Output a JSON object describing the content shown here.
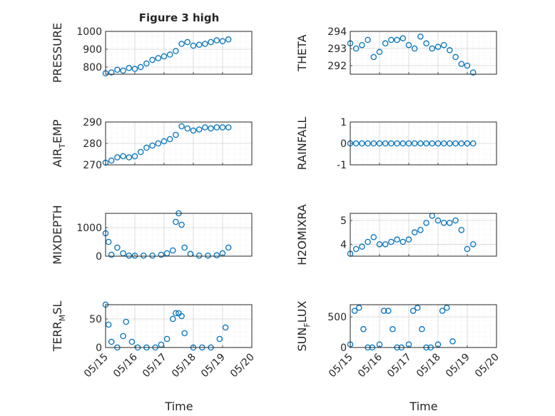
{
  "figure": {
    "title": "Figure 3 high"
  },
  "chart_data": [
    {
      "type": "scatter",
      "ylabel": "PRESSURE",
      "ylim": [
        760,
        1000
      ],
      "yticks": [
        "800",
        "900",
        "1000"
      ],
      "color": "#0072bd",
      "grid": true,
      "x": [
        15.0,
        15.2,
        15.4,
        15.6,
        15.8,
        16.0,
        16.2,
        16.4,
        16.6,
        16.8,
        17.0,
        17.2,
        17.4,
        17.6,
        17.8,
        18.0,
        18.2,
        18.4,
        18.6,
        18.8,
        19.0,
        19.2
      ],
      "y": [
        765,
        770,
        785,
        780,
        795,
        790,
        800,
        820,
        840,
        850,
        860,
        870,
        890,
        930,
        940,
        920,
        925,
        930,
        940,
        950,
        945,
        955
      ]
    },
    {
      "type": "scatter",
      "ylabel": "THETA",
      "ylim": [
        291.5,
        294
      ],
      "yticks": [
        "292",
        "293",
        "294"
      ],
      "color": "#0072bd",
      "grid": true,
      "x": [
        15.0,
        15.2,
        15.4,
        15.6,
        15.8,
        16.0,
        16.2,
        16.4,
        16.6,
        16.8,
        17.0,
        17.2,
        17.4,
        17.6,
        17.8,
        18.0,
        18.2,
        18.4,
        18.6,
        18.8,
        19.0,
        19.2
      ],
      "y": [
        293.3,
        293.0,
        293.2,
        293.5,
        292.5,
        292.8,
        293.3,
        293.5,
        293.5,
        293.6,
        293.2,
        293.0,
        293.7,
        293.3,
        293.0,
        293.1,
        293.2,
        292.9,
        292.5,
        292.1,
        292.0,
        291.6
      ]
    },
    {
      "type": "scatter",
      "ylabel": "AIR",
      "ylabel_sub": "T",
      "ylabel_rest": "EMP",
      "ylim": [
        270,
        290
      ],
      "yticks": [
        "270",
        "280",
        "290"
      ],
      "color": "#0072bd",
      "grid": true,
      "x": [
        15.0,
        15.2,
        15.4,
        15.6,
        15.8,
        16.0,
        16.2,
        16.4,
        16.6,
        16.8,
        17.0,
        17.2,
        17.4,
        17.6,
        17.8,
        18.0,
        18.2,
        18.4,
        18.6,
        18.8,
        19.0,
        19.2
      ],
      "y": [
        271,
        272,
        273.5,
        274,
        273.5,
        274,
        276,
        278,
        279,
        280,
        281,
        282,
        284,
        288,
        287,
        286,
        286.5,
        287.5,
        287,
        287.5,
        287.5,
        287.5
      ]
    },
    {
      "type": "scatter",
      "ylabel": "RAINFALL",
      "ylim": [
        -1,
        1
      ],
      "yticks": [
        "-1",
        "0",
        "1"
      ],
      "color": "#0072bd",
      "grid": true,
      "x": [
        15.0,
        15.2,
        15.4,
        15.6,
        15.8,
        16.0,
        16.2,
        16.4,
        16.6,
        16.8,
        17.0,
        17.2,
        17.4,
        17.6,
        17.8,
        18.0,
        18.2,
        18.4,
        18.6,
        18.8,
        19.0,
        19.2
      ],
      "y": [
        0,
        0,
        0,
        0,
        0,
        0,
        0,
        0,
        0,
        0,
        0,
        0,
        0,
        0,
        0,
        0,
        0,
        0,
        0,
        0,
        0,
        0
      ]
    },
    {
      "type": "scatter",
      "ylabel": "MIXDEPTH",
      "ylim": [
        0,
        1500
      ],
      "yticks": [
        "0",
        "1000"
      ],
      "color": "#0072bd",
      "grid": true,
      "x": [
        15.0,
        15.1,
        15.2,
        15.4,
        15.6,
        15.8,
        16.0,
        16.3,
        16.6,
        16.9,
        17.1,
        17.3,
        17.4,
        17.5,
        17.6,
        17.7,
        17.9,
        18.2,
        18.5,
        18.8,
        19.0,
        19.2
      ],
      "y": [
        800,
        500,
        50,
        300,
        100,
        20,
        20,
        20,
        20,
        50,
        100,
        200,
        1200,
        1500,
        1100,
        300,
        80,
        20,
        20,
        30,
        100,
        300
      ]
    },
    {
      "type": "scatter",
      "ylabel": "H2OMIXRA",
      "ylim": [
        3.5,
        5.3
      ],
      "yticks": [
        "4",
        "5"
      ],
      "color": "#0072bd",
      "grid": true,
      "x": [
        15.0,
        15.2,
        15.4,
        15.6,
        15.8,
        16.0,
        16.2,
        16.4,
        16.6,
        16.8,
        17.0,
        17.2,
        17.4,
        17.6,
        17.8,
        18.0,
        18.2,
        18.4,
        18.6,
        18.8,
        19.0,
        19.2
      ],
      "y": [
        3.6,
        3.8,
        3.9,
        4.1,
        4.3,
        4.0,
        4.0,
        4.1,
        4.2,
        4.1,
        4.2,
        4.5,
        4.6,
        4.9,
        5.2,
        5.0,
        4.9,
        4.9,
        5.0,
        4.6,
        3.8,
        4.0
      ]
    },
    {
      "type": "scatter",
      "ylabel": "TERR",
      "ylabel_sub": "M",
      "ylabel_rest": "SL",
      "ylim": [
        0,
        75
      ],
      "yticks": [
        "0",
        "50"
      ],
      "color": "#0072bd",
      "grid": true,
      "x": [
        15.0,
        15.1,
        15.2,
        15.4,
        15.6,
        15.7,
        15.9,
        16.1,
        16.4,
        16.7,
        16.9,
        17.1,
        17.3,
        17.4,
        17.5,
        17.6,
        17.7,
        18.0,
        18.3,
        18.6,
        18.9,
        19.1
      ],
      "y": [
        75,
        40,
        10,
        0,
        20,
        45,
        10,
        0,
        0,
        0,
        5,
        15,
        50,
        60,
        60,
        55,
        25,
        0,
        0,
        0,
        15,
        35
      ]
    },
    {
      "type": "scatter",
      "ylabel": "SUN",
      "ylabel_sub": "F",
      "ylabel_rest": "LUX",
      "ylim": [
        0,
        700
      ],
      "yticks": [
        "0",
        "500"
      ],
      "color": "#0072bd",
      "grid": true,
      "x": [
        15.0,
        15.15,
        15.3,
        15.45,
        15.6,
        15.75,
        16.0,
        16.15,
        16.3,
        16.45,
        16.6,
        16.75,
        17.0,
        17.15,
        17.3,
        17.45,
        17.6,
        17.75,
        18.0,
        18.15,
        18.3,
        18.5
      ],
      "y": [
        50,
        600,
        650,
        300,
        0,
        0,
        50,
        600,
        600,
        300,
        0,
        0,
        50,
        600,
        650,
        300,
        0,
        0,
        50,
        600,
        650,
        100
      ]
    }
  ],
  "xaxis": {
    "ticks": [
      "05/15",
      "05/16",
      "05/17",
      "05/18",
      "05/19",
      "05/20"
    ],
    "label": "Time",
    "range": [
      "05/15",
      "05/20"
    ]
  }
}
